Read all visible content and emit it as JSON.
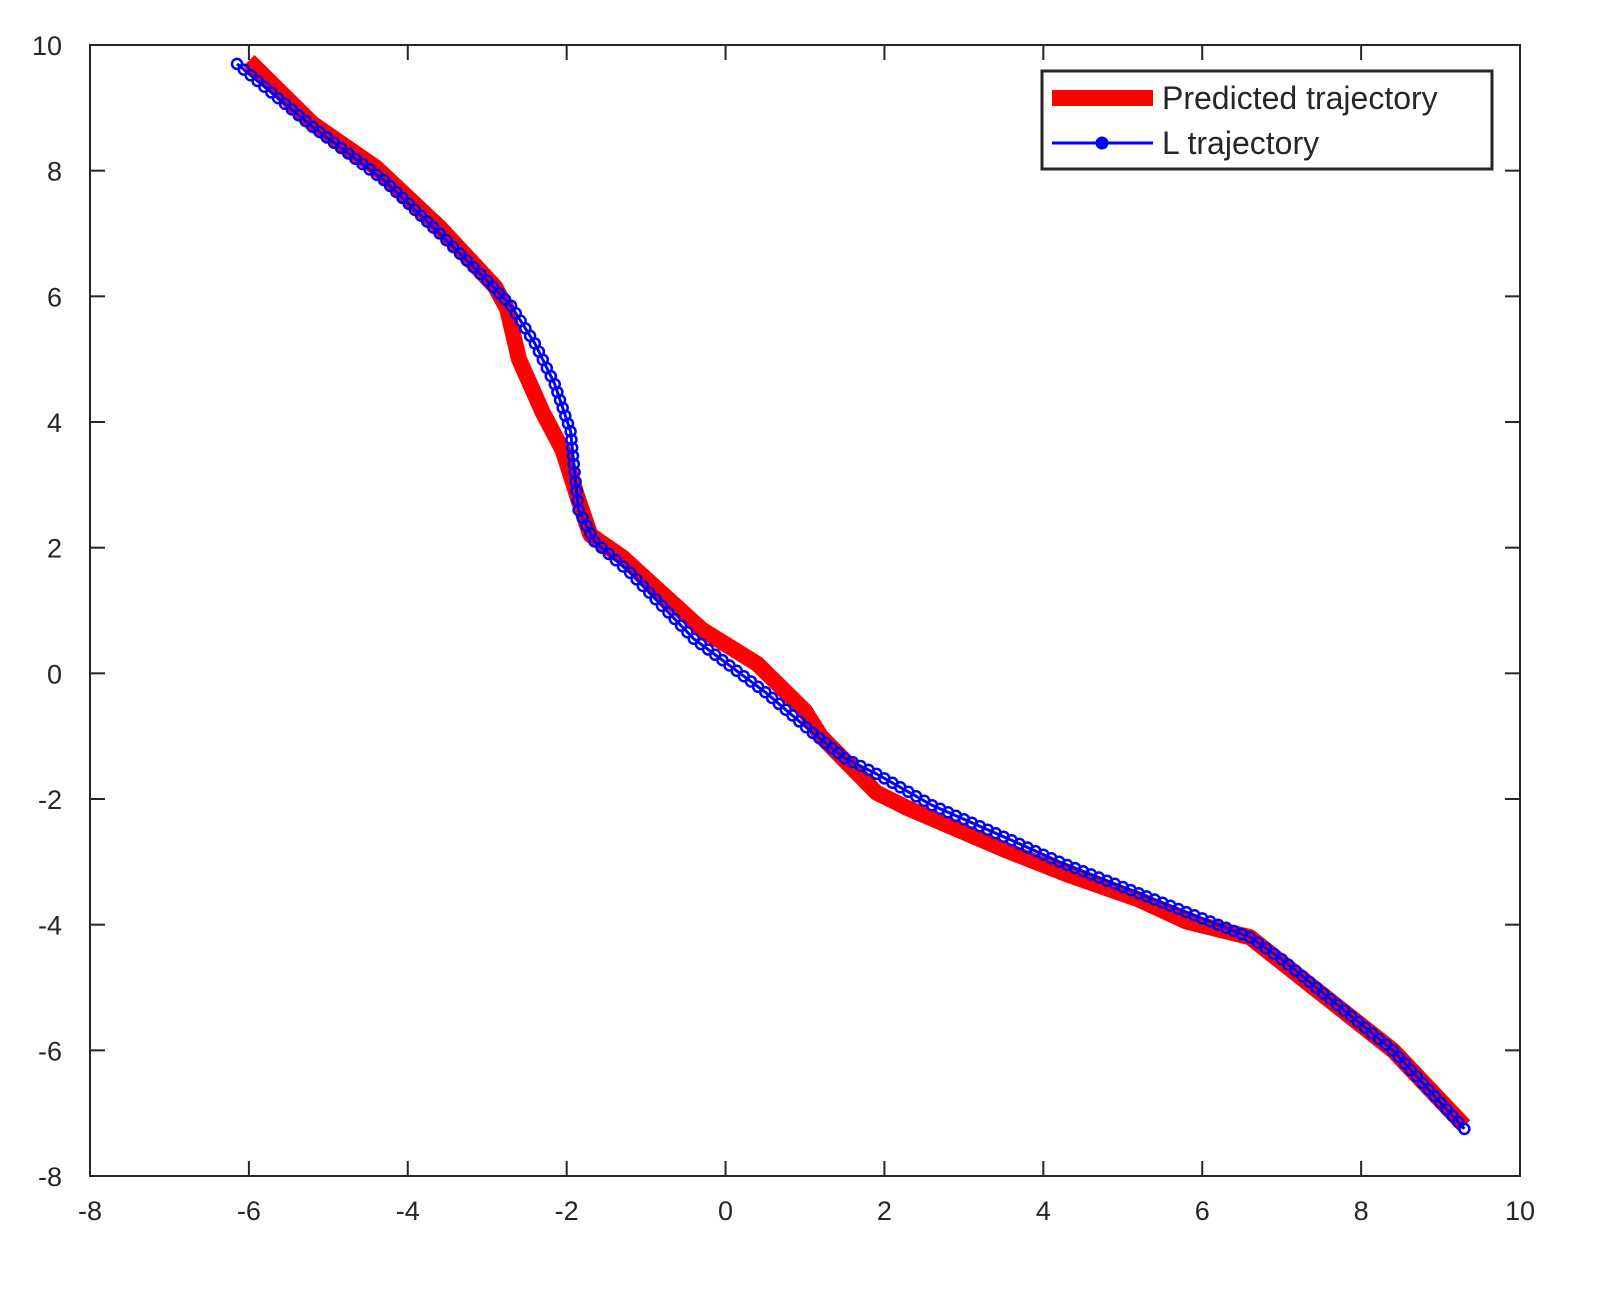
{
  "chart_data": {
    "type": "line",
    "title": "",
    "xlabel": "",
    "ylabel": "",
    "xlim": [
      -8,
      10
    ],
    "ylim": [
      -8,
      10
    ],
    "xticks": [
      "-8",
      "-6",
      "-4",
      "-2",
      "0",
      "2",
      "4",
      "6",
      "8",
      "10"
    ],
    "yticks": [
      "-8",
      "-6",
      "-4",
      "-2",
      "0",
      "2",
      "4",
      "6",
      "8",
      "10"
    ],
    "grid": false,
    "box": true,
    "legend_position": "top-right",
    "series": [
      {
        "name": "Predicted trajectory",
        "color": "#ff0000",
        "style": "thick-line",
        "points": [
          [
            -6.0,
            9.75
          ],
          [
            -5.2,
            8.75
          ],
          [
            -4.4,
            8.05
          ],
          [
            -3.6,
            7.1
          ],
          [
            -2.9,
            6.15
          ],
          [
            -2.75,
            5.8
          ],
          [
            -2.6,
            5.0
          ],
          [
            -2.3,
            4.15
          ],
          [
            -2.05,
            3.55
          ],
          [
            -1.85,
            2.75
          ],
          [
            -1.7,
            2.2
          ],
          [
            -1.3,
            1.85
          ],
          [
            -0.3,
            0.7
          ],
          [
            0.4,
            0.15
          ],
          [
            1.0,
            -0.6
          ],
          [
            1.2,
            -1.0
          ],
          [
            1.9,
            -1.9
          ],
          [
            2.3,
            -2.15
          ],
          [
            3.5,
            -2.8
          ],
          [
            4.3,
            -3.2
          ],
          [
            5.2,
            -3.6
          ],
          [
            5.8,
            -3.95
          ],
          [
            6.6,
            -4.2
          ],
          [
            7.0,
            -4.6
          ],
          [
            8.4,
            -6.0
          ],
          [
            9.3,
            -7.2
          ]
        ]
      },
      {
        "name": "L trajectory",
        "color": "#0000ff",
        "style": "line-circle-markers",
        "points": [
          [
            -6.15,
            9.7
          ],
          [
            -5.2,
            8.7
          ],
          [
            -4.3,
            7.85
          ],
          [
            -3.6,
            7.0
          ],
          [
            -3.0,
            6.25
          ],
          [
            -2.7,
            5.85
          ],
          [
            -2.4,
            5.25
          ],
          [
            -2.15,
            4.6
          ],
          [
            -1.95,
            3.85
          ],
          [
            -1.9,
            3.2
          ],
          [
            -1.85,
            2.6
          ],
          [
            -1.65,
            2.1
          ],
          [
            -1.2,
            1.6
          ],
          [
            -0.4,
            0.55
          ],
          [
            0.5,
            -0.3
          ],
          [
            1.1,
            -0.95
          ],
          [
            1.5,
            -1.35
          ],
          [
            1.9,
            -1.6
          ],
          [
            2.6,
            -2.1
          ],
          [
            3.5,
            -2.6
          ],
          [
            4.2,
            -3.0
          ],
          [
            5.0,
            -3.4
          ],
          [
            5.6,
            -3.7
          ],
          [
            6.0,
            -3.9
          ],
          [
            6.6,
            -4.2
          ],
          [
            7.0,
            -4.55
          ],
          [
            8.4,
            -6.0
          ],
          [
            9.3,
            -7.25
          ]
        ]
      }
    ]
  }
}
